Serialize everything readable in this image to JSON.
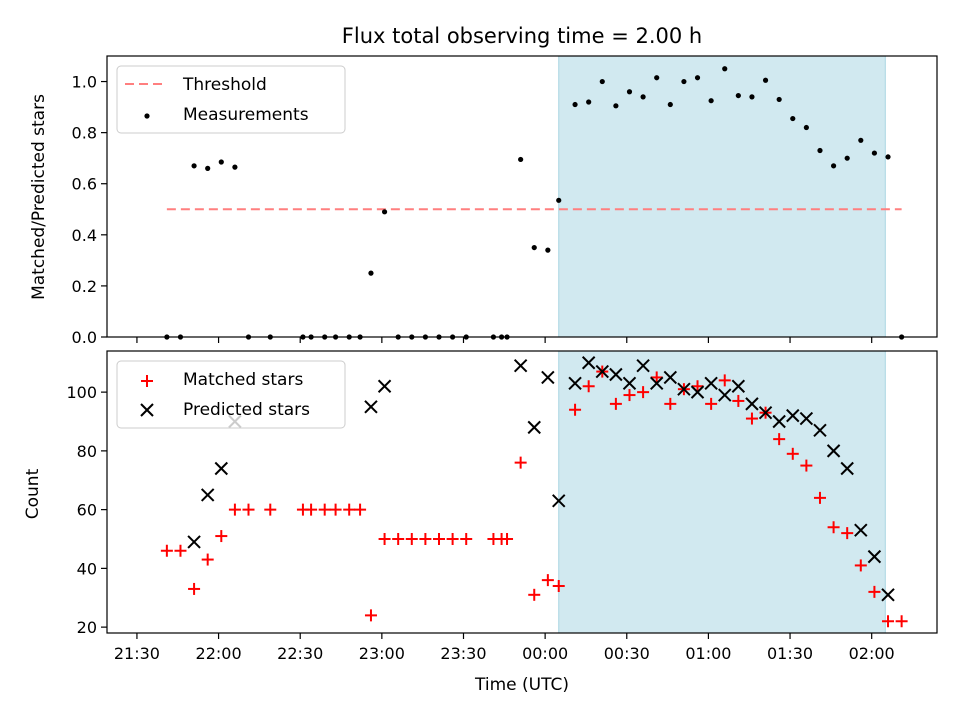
{
  "chart_data": [
    {
      "type": "scatter",
      "title": "Flux total observing time = 2.00 h",
      "xlabel": "",
      "ylabel": "Matched/Predicted stars",
      "xlim": [
        "21:19",
        "02:24"
      ],
      "ylim": [
        0,
        1.1
      ],
      "yticks": [
        "0.0",
        "0.2",
        "0.4",
        "0.6",
        "0.8",
        "1.0"
      ],
      "grid": false,
      "legend_position": "top-left",
      "highlight_span": {
        "from": "00:05",
        "to": "02:05",
        "color": "#d1e9f0"
      },
      "threshold": {
        "name": "Threshold",
        "value": 0.5,
        "from": "21:41",
        "to": "02:11",
        "color": "#ff7f7f"
      },
      "series": [
        {
          "name": "Measurements",
          "color": "#000000",
          "points": [
            [
              "21:41",
              0.0
            ],
            [
              "21:46",
              0.0
            ],
            [
              "21:51",
              0.67
            ],
            [
              "21:56",
              0.66
            ],
            [
              "22:01",
              0.685
            ],
            [
              "22:06",
              0.665
            ],
            [
              "22:11",
              0.0
            ],
            [
              "22:19",
              0.0
            ],
            [
              "22:31",
              0.0
            ],
            [
              "22:34",
              0.0
            ],
            [
              "22:39",
              0.0
            ],
            [
              "22:43",
              0.0
            ],
            [
              "22:48",
              0.0
            ],
            [
              "22:52",
              0.0
            ],
            [
              "22:56",
              0.25
            ],
            [
              "23:01",
              0.49
            ],
            [
              "23:06",
              0.0
            ],
            [
              "23:11",
              0.0
            ],
            [
              "23:16",
              0.0
            ],
            [
              "23:21",
              0.0
            ],
            [
              "23:26",
              0.0
            ],
            [
              "23:31",
              0.0
            ],
            [
              "23:41",
              0.0
            ],
            [
              "23:44",
              0.0
            ],
            [
              "23:46",
              0.0
            ],
            [
              "23:51",
              0.695
            ],
            [
              "23:56",
              0.35
            ],
            [
              "00:01",
              0.34
            ],
            [
              "00:05",
              0.535
            ],
            [
              "00:11",
              0.91
            ],
            [
              "00:16",
              0.92
            ],
            [
              "00:21",
              1.0
            ],
            [
              "00:26",
              0.905
            ],
            [
              "00:31",
              0.96
            ],
            [
              "00:36",
              0.94
            ],
            [
              "00:41",
              1.015
            ],
            [
              "00:46",
              0.91
            ],
            [
              "00:51",
              1.0
            ],
            [
              "00:56",
              1.015
            ],
            [
              "01:01",
              0.925
            ],
            [
              "01:06",
              1.05
            ],
            [
              "01:11",
              0.945
            ],
            [
              "01:16",
              0.94
            ],
            [
              "01:21",
              1.005
            ],
            [
              "01:26",
              0.93
            ],
            [
              "01:31",
              0.855
            ],
            [
              "01:36",
              0.82
            ],
            [
              "01:41",
              0.73
            ],
            [
              "01:46",
              0.67
            ],
            [
              "01:51",
              0.7
            ],
            [
              "01:56",
              0.77
            ],
            [
              "02:01",
              0.72
            ],
            [
              "02:06",
              0.705
            ],
            [
              "02:11",
              0.0
            ]
          ]
        }
      ]
    },
    {
      "type": "scatter",
      "title": "",
      "xlabel": "Time (UTC)",
      "ylabel": "Count",
      "xlim": [
        "21:19",
        "02:24"
      ],
      "ylim": [
        18,
        114
      ],
      "yticks": [
        "20",
        "40",
        "60",
        "80",
        "100"
      ],
      "xticks": [
        "21:30",
        "22:00",
        "22:30",
        "23:00",
        "23:30",
        "00:00",
        "00:30",
        "01:00",
        "01:30",
        "02:00"
      ],
      "grid": false,
      "legend_position": "top-left",
      "highlight_span": {
        "from": "00:05",
        "to": "02:05",
        "color": "#d1e9f0"
      },
      "series": [
        {
          "name": "Matched stars",
          "marker": "+",
          "color": "#ff0000",
          "points": [
            [
              "21:41",
              46
            ],
            [
              "21:46",
              46
            ],
            [
              "21:51",
              33
            ],
            [
              "21:56",
              43
            ],
            [
              "22:01",
              51
            ],
            [
              "22:06",
              60
            ],
            [
              "22:11",
              60
            ],
            [
              "22:19",
              60
            ],
            [
              "22:31",
              60
            ],
            [
              "22:34",
              60
            ],
            [
              "22:39",
              60
            ],
            [
              "22:43",
              60
            ],
            [
              "22:48",
              60
            ],
            [
              "22:52",
              60
            ],
            [
              "22:56",
              24
            ],
            [
              "23:01",
              50
            ],
            [
              "23:06",
              50
            ],
            [
              "23:11",
              50
            ],
            [
              "23:16",
              50
            ],
            [
              "23:21",
              50
            ],
            [
              "23:26",
              50
            ],
            [
              "23:31",
              50
            ],
            [
              "23:41",
              50
            ],
            [
              "23:44",
              50
            ],
            [
              "23:46",
              50
            ],
            [
              "23:51",
              76
            ],
            [
              "23:56",
              31
            ],
            [
              "00:01",
              36
            ],
            [
              "00:05",
              34
            ],
            [
              "00:11",
              94
            ],
            [
              "00:16",
              102
            ],
            [
              "00:21",
              107
            ],
            [
              "00:26",
              96
            ],
            [
              "00:31",
              99
            ],
            [
              "00:36",
              100
            ],
            [
              "00:41",
              105
            ],
            [
              "00:46",
              96
            ],
            [
              "00:51",
              101
            ],
            [
              "00:56",
              102
            ],
            [
              "01:01",
              96
            ],
            [
              "01:06",
              104
            ],
            [
              "01:11",
              97
            ],
            [
              "01:16",
              91
            ],
            [
              "01:21",
              93
            ],
            [
              "01:26",
              84
            ],
            [
              "01:31",
              79
            ],
            [
              "01:36",
              75
            ],
            [
              "01:41",
              64
            ],
            [
              "01:46",
              54
            ],
            [
              "01:51",
              52
            ],
            [
              "01:56",
              41
            ],
            [
              "02:01",
              32
            ],
            [
              "02:06",
              22
            ],
            [
              "02:11",
              22
            ]
          ]
        },
        {
          "name": "Predicted stars",
          "marker": "x",
          "color": "#000000",
          "points": [
            [
              "21:51",
              49
            ],
            [
              "21:56",
              65
            ],
            [
              "22:01",
              74
            ],
            [
              "22:06",
              90
            ],
            [
              "22:56",
              95
            ],
            [
              "23:01",
              102
            ],
            [
              "23:51",
              109
            ],
            [
              "23:56",
              88
            ],
            [
              "00:01",
              105
            ],
            [
              "00:05",
              63
            ],
            [
              "00:11",
              103
            ],
            [
              "00:16",
              110
            ],
            [
              "00:21",
              107
            ],
            [
              "00:26",
              106
            ],
            [
              "00:31",
              103
            ],
            [
              "00:36",
              109
            ],
            [
              "00:41",
              103
            ],
            [
              "00:46",
              105
            ],
            [
              "00:51",
              101
            ],
            [
              "00:56",
              100
            ],
            [
              "01:01",
              103
            ],
            [
              "01:06",
              99
            ],
            [
              "01:11",
              102
            ],
            [
              "01:16",
              96
            ],
            [
              "01:21",
              93
            ],
            [
              "01:26",
              90
            ],
            [
              "01:31",
              92
            ],
            [
              "01:36",
              91
            ],
            [
              "01:41",
              87
            ],
            [
              "01:46",
              80
            ],
            [
              "01:51",
              74
            ],
            [
              "01:56",
              53
            ],
            [
              "02:01",
              44
            ],
            [
              "02:06",
              31
            ]
          ]
        }
      ]
    }
  ]
}
